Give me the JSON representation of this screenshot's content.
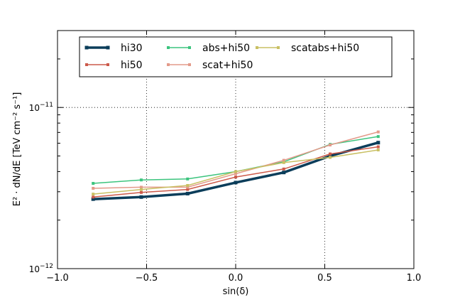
{
  "chart_data": {
    "type": "line",
    "title": "",
    "xlabel": "sin(δ)",
    "ylabel": "E² · dN/dE  [TeV cm⁻² s⁻¹]",
    "xscale": "linear",
    "yscale": "log",
    "xlim": [
      -1.0,
      1.0
    ],
    "ylim": [
      1e-12,
      3e-11
    ],
    "grid": true,
    "x_ticks": [
      -1.0,
      -0.5,
      0.0,
      0.5,
      1.0
    ],
    "x_tick_labels": [
      "−1.0",
      "−0.5",
      "0.0",
      "0.5",
      "1.0"
    ],
    "y_ticks": [
      1e-12,
      1e-11
    ],
    "y_tick_labels": [
      {
        "base": "10",
        "exp": "−12"
      },
      {
        "base": "10",
        "exp": "−11"
      }
    ],
    "legend": {
      "placement": "top-center",
      "columns": 3
    },
    "x": [
      -0.8,
      -0.53,
      -0.27,
      0.0,
      0.27,
      0.53,
      0.8
    ],
    "series": [
      {
        "name": "hi30",
        "color": "#0b3d5a",
        "width": 3.5,
        "values": [
          2.7e-12,
          2.78e-12,
          2.92e-12,
          3.42e-12,
          3.95e-12,
          5e-12,
          6.05e-12
        ]
      },
      {
        "name": "hi50",
        "color": "#cc5a4a",
        "width": 1.5,
        "values": [
          2.78e-12,
          2.97e-12,
          3.1e-12,
          3.7e-12,
          4.15e-12,
          5.15e-12,
          5.7e-12
        ]
      },
      {
        "name": "abs+hi50",
        "color": "#3cc47e",
        "width": 1.5,
        "values": [
          3.38e-12,
          3.55e-12,
          3.6e-12,
          4e-12,
          4.6e-12,
          5.9e-12,
          6.6e-12
        ]
      },
      {
        "name": "scat+hi50",
        "color": "#e39a8a",
        "width": 1.5,
        "values": [
          3.15e-12,
          3.2e-12,
          3.2e-12,
          3.88e-12,
          4.7e-12,
          5.85e-12,
          7.05e-12
        ]
      },
      {
        "name": "scatabs+hi50",
        "color": "#c9c064",
        "width": 1.5,
        "values": [
          2.9e-12,
          3.1e-12,
          3.28e-12,
          4e-12,
          4.55e-12,
          4.9e-12,
          5.45e-12
        ]
      }
    ]
  }
}
